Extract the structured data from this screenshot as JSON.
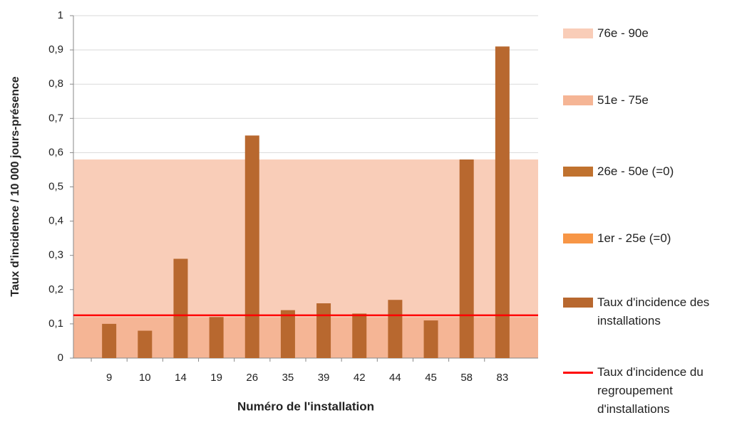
{
  "chart_data": {
    "type": "bar",
    "x_label": "Numéro de l'installation",
    "y_label": "Taux d'incidence / 10 000 jours-présence",
    "categories": [
      "9",
      "10",
      "14",
      "19",
      "26",
      "35",
      "39",
      "42",
      "44",
      "45",
      "58",
      "83"
    ],
    "ylim": [
      0,
      1
    ],
    "yticks": [
      0,
      {
        "value": 0.1,
        "label": "0,1"
      },
      {
        "value": 0.2,
        "label": "0,2"
      },
      {
        "value": 0.3,
        "label": "0,3"
      },
      {
        "value": 0.4,
        "label": "0,4"
      },
      {
        "value": 0.5,
        "label": "0,5"
      },
      {
        "value": 0.6,
        "label": "0,6"
      },
      {
        "value": 0.7,
        "label": "0,7"
      },
      {
        "value": 0.8,
        "label": "0,8"
      },
      {
        "value": 0.9,
        "label": "0,9"
      },
      1
    ],
    "grid": true,
    "series": [
      {
        "name": "76e - 90e",
        "style": "band",
        "color": "#f9cdb8",
        "value": 0.46
      },
      {
        "name": "51e - 75e",
        "style": "band",
        "color": "#f5b595",
        "value": 0.12
      },
      {
        "name": "26e - 50e (=0)",
        "style": "band",
        "color": "#c0722f",
        "value": 0
      },
      {
        "name": "1er - 25e (=0)",
        "style": "band",
        "color": "#f79646",
        "value": 0
      },
      {
        "name": "Taux d'incidence des installations",
        "style": "bar",
        "color": "#b8682f",
        "values": [
          0.1,
          0.08,
          0.29,
          0.12,
          0.65,
          0.14,
          0.16,
          0.13,
          0.17,
          0.11,
          0.58,
          0.91
        ]
      },
      {
        "name": "Taux d'incidence du regroupement d'installations",
        "style": "line",
        "color": "#ff0000",
        "value": 0.125
      }
    ]
  }
}
